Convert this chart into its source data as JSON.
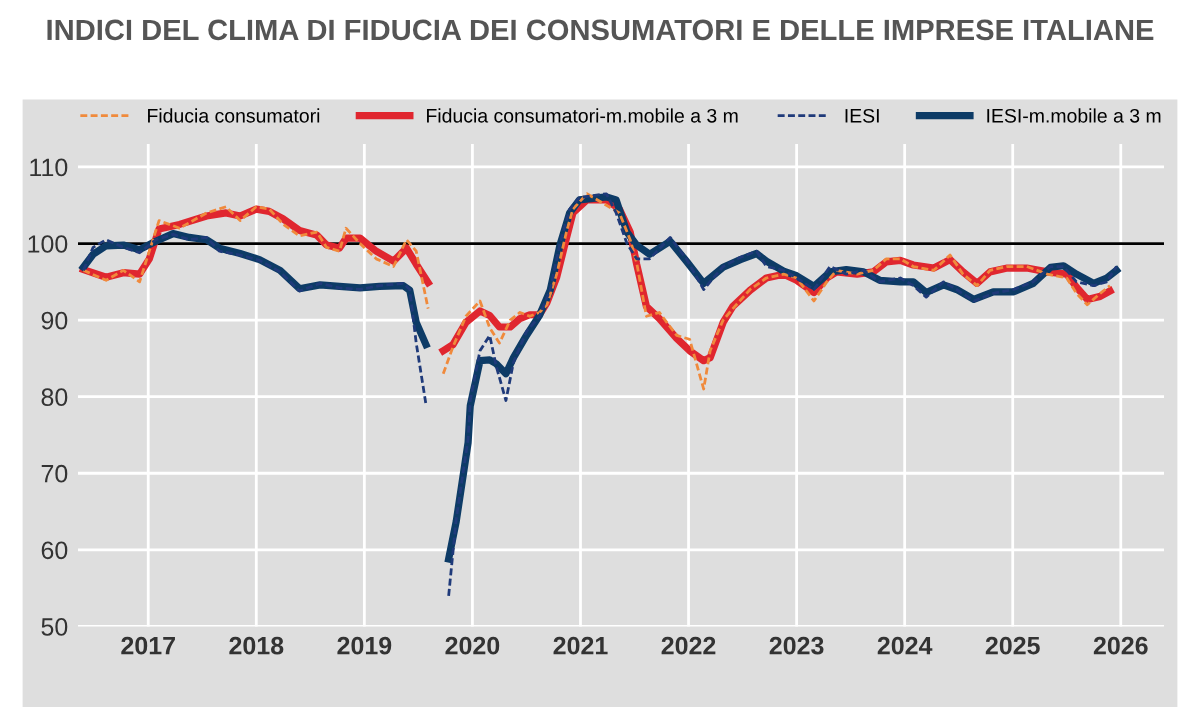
{
  "chart_data": {
    "type": "line",
    "title": "INDICI DEL CLIMA DI FIDUCIA DEI CONSUMATORI E DELLE IMPRESE ITALIANE",
    "xlim": [
      2016.85,
      2026.9
    ],
    "ylim": [
      50,
      113
    ],
    "xticks": [
      {
        "value": 2017.5,
        "label": "2017"
      },
      {
        "value": 2018.5,
        "label": "2018"
      },
      {
        "value": 2019.5,
        "label": "2019"
      },
      {
        "value": 2020.5,
        "label": "2020"
      },
      {
        "value": 2021.5,
        "label": "2021"
      },
      {
        "value": 2022.5,
        "label": "2022"
      },
      {
        "value": 2023.5,
        "label": "2023"
      },
      {
        "value": 2024.5,
        "label": "2024"
      },
      {
        "value": 2025.5,
        "label": "2025"
      },
      {
        "value": 2026.5,
        "label": "2026"
      }
    ],
    "yticks": [
      50,
      60,
      70,
      80,
      90,
      100,
      110
    ],
    "grid": true,
    "legend": "top",
    "ref_lines": [
      {
        "axis": "y",
        "value": 100,
        "color": "#000000"
      }
    ],
    "series": [
      {
        "name": "Fiducia consumatori",
        "color": "#f08a3c",
        "line_style": "dashed",
        "x": [
          2016.9,
          2017.11,
          2017.27,
          2017.42,
          2017.51,
          2017.6,
          2017.79,
          2018.04,
          2018.22,
          2018.35,
          2018.5,
          2018.62,
          2018.75,
          2018.9,
          2019.06,
          2019.15,
          2019.27,
          2019.33,
          2019.46,
          2019.61,
          2019.77,
          2019.89,
          2019.98,
          2020.09,
          2020.15,
          2020.23,
          2020.32,
          2020.44,
          2020.57,
          2020.66,
          2020.75,
          2020.85,
          2020.94,
          2021.03,
          2021.12,
          2021.19,
          2021.28,
          2021.37,
          2021.43,
          2021.56,
          2021.74,
          2021.86,
          2021.96,
          2022.02,
          2022.11,
          2022.23,
          2022.39,
          2022.51,
          2022.64,
          2022.7,
          2022.82,
          2022.91,
          2023.07,
          2023.22,
          2023.38,
          2023.5,
          2023.66,
          2023.78,
          2023.87,
          2024.06,
          2024.21,
          2024.33,
          2024.46,
          2024.58,
          2024.77,
          2024.92,
          2025.04,
          2025.17,
          2025.29,
          2025.45,
          2025.63,
          2025.82,
          2026.0,
          2026.09,
          2026.19,
          2026.31,
          2026.4
        ],
        "values": [
          96.5,
          95.2,
          96.5,
          95.0,
          99.0,
          103.0,
          102.0,
          104.0,
          104.8,
          103.0,
          104.8,
          104.5,
          102.5,
          101.0,
          101.5,
          99.5,
          99.0,
          102.0,
          100.0,
          98.0,
          97.0,
          100.5,
          99.0,
          91.5,
          null,
          83.0,
          86.5,
          90.5,
          92.5,
          89.0,
          87.0,
          90.0,
          91.0,
          90.5,
          91.0,
          92.0,
          96.0,
          101.5,
          104.5,
          106.5,
          105.0,
          104.0,
          100.5,
          97.5,
          90.5,
          91.0,
          88.0,
          87.5,
          81.0,
          86.0,
          90.0,
          91.5,
          94.0,
          95.5,
          96.0,
          95.5,
          92.5,
          95.0,
          96.5,
          96.0,
          96.5,
          98.0,
          98.0,
          97.0,
          96.5,
          98.5,
          96.0,
          94.5,
          96.5,
          97.0,
          97.0,
          96.0,
          95.5,
          93.5,
          92.0,
          93.5,
          94.5
        ]
      },
      {
        "name": "Fiducia consumatori-m.mobile a 3 m",
        "color": "#e0262f",
        "line_style": "solid",
        "x": [
          2016.9,
          2017.11,
          2017.27,
          2017.42,
          2017.51,
          2017.6,
          2017.79,
          2018.04,
          2018.22,
          2018.35,
          2018.5,
          2018.62,
          2018.75,
          2018.9,
          2019.06,
          2019.15,
          2019.27,
          2019.33,
          2019.46,
          2019.61,
          2019.77,
          2019.89,
          2019.98,
          2020.09,
          2020.15,
          2020.23,
          2020.32,
          2020.44,
          2020.57,
          2020.66,
          2020.75,
          2020.85,
          2020.94,
          2021.03,
          2021.12,
          2021.19,
          2021.28,
          2021.37,
          2021.43,
          2021.56,
          2021.74,
          2021.86,
          2021.96,
          2022.02,
          2022.11,
          2022.23,
          2022.39,
          2022.51,
          2022.64,
          2022.7,
          2022.82,
          2022.91,
          2023.07,
          2023.22,
          2023.38,
          2023.5,
          2023.66,
          2023.78,
          2023.87,
          2024.06,
          2024.21,
          2024.33,
          2024.46,
          2024.58,
          2024.77,
          2024.92,
          2025.04,
          2025.17,
          2025.29,
          2025.45,
          2025.63,
          2025.82,
          2026.0,
          2026.09,
          2026.19,
          2026.31,
          2026.4
        ],
        "values": [
          96.6,
          95.6,
          96.2,
          96.0,
          98.0,
          101.9,
          102.5,
          103.6,
          104.0,
          103.6,
          104.5,
          104.2,
          103.2,
          101.7,
          101.1,
          99.8,
          99.4,
          100.7,
          100.7,
          99.0,
          97.7,
          99.4,
          97.3,
          94.9,
          null,
          86.0,
          86.8,
          89.7,
          91.2,
          90.6,
          89.1,
          89.1,
          90.2,
          90.7,
          90.7,
          92.3,
          95.6,
          100.7,
          104.0,
          105.7,
          105.7,
          104.5,
          101.5,
          97.3,
          91.8,
          90.2,
          87.6,
          86.0,
          84.7,
          85.1,
          89.7,
          91.8,
          93.9,
          95.5,
          96.0,
          95.2,
          93.6,
          95.5,
          96.3,
          96.0,
          96.3,
          97.6,
          97.8,
          97.2,
          96.8,
          97.9,
          96.3,
          94.8,
          96.3,
          96.8,
          96.8,
          96.3,
          96.0,
          94.3,
          92.7,
          93.1,
          93.8
        ]
      },
      {
        "name": "IESI",
        "color": "#1f3a7a",
        "line_style": "dashed",
        "x": [
          2016.9,
          2016.99,
          2017.11,
          2017.27,
          2017.42,
          2017.57,
          2017.73,
          2017.88,
          2018.04,
          2018.16,
          2018.35,
          2018.53,
          2018.72,
          2018.9,
          2019.09,
          2019.27,
          2019.46,
          2019.64,
          2019.86,
          2019.92,
          2019.98,
          2020.07,
          2020.17,
          2020.28,
          2020.35,
          2020.46,
          2020.48,
          2020.57,
          2020.66,
          2020.72,
          2020.81,
          2020.88,
          2021.0,
          2021.12,
          2021.22,
          2021.31,
          2021.4,
          2021.49,
          2021.74,
          2021.83,
          2021.93,
          2022.02,
          2022.14,
          2022.33,
          2022.48,
          2022.64,
          2022.82,
          2022.98,
          2023.13,
          2023.22,
          2023.38,
          2023.5,
          2023.66,
          2023.81,
          2023.96,
          2024.12,
          2024.27,
          2024.46,
          2024.58,
          2024.7,
          2024.86,
          2024.98,
          2025.14,
          2025.32,
          2025.51,
          2025.69,
          2025.85,
          2025.97,
          2026.09,
          2026.25,
          2026.37,
          2026.46
        ],
        "values": [
          96.5,
          99.5,
          100.5,
          99.5,
          98.8,
          100.5,
          101.2,
          100.5,
          100.8,
          99.0,
          98.5,
          97.8,
          96.3,
          93.8,
          94.8,
          94.2,
          94.0,
          94.5,
          94.8,
          94.0,
          87.0,
          79.0,
          null,
          54.0,
          64.0,
          74.5,
          79.5,
          86.0,
          88.0,
          84.0,
          79.5,
          84.5,
          88.5,
          90.5,
          94.0,
          100.0,
          104.5,
          106.0,
          106.5,
          104.0,
          100.0,
          98.0,
          98.0,
          100.8,
          98.0,
          94.0,
          97.0,
          98.2,
          99.0,
          97.0,
          96.5,
          95.5,
          94.0,
          97.0,
          96.0,
          96.5,
          95.0,
          95.5,
          94.5,
          93.0,
          95.0,
          94.0,
          92.5,
          93.5,
          94.0,
          95.0,
          97.0,
          97.0,
          95.0,
          94.5,
          95.0,
          97.0
        ]
      },
      {
        "name": "IESI-m.mobile a 3 m",
        "color": "#0d3b66",
        "line_style": "solid",
        "x": [
          2016.9,
          2016.99,
          2017.11,
          2017.27,
          2017.42,
          2017.57,
          2017.73,
          2017.88,
          2018.04,
          2018.16,
          2018.35,
          2018.53,
          2018.72,
          2018.9,
          2019.09,
          2019.27,
          2019.46,
          2019.64,
          2019.86,
          2019.92,
          2019.98,
          2020.07,
          2020.17,
          2020.28,
          2020.35,
          2020.46,
          2020.48,
          2020.57,
          2020.66,
          2020.72,
          2020.81,
          2020.88,
          2021.0,
          2021.12,
          2021.22,
          2021.31,
          2021.4,
          2021.49,
          2021.74,
          2021.83,
          2021.93,
          2022.02,
          2022.14,
          2022.33,
          2022.48,
          2022.64,
          2022.82,
          2022.98,
          2023.13,
          2023.22,
          2023.38,
          2023.5,
          2023.66,
          2023.81,
          2023.96,
          2024.12,
          2024.27,
          2024.46,
          2024.58,
          2024.7,
          2024.86,
          2024.98,
          2025.14,
          2025.32,
          2025.51,
          2025.69,
          2025.85,
          2025.97,
          2026.09,
          2026.25,
          2026.37,
          2026.46
        ],
        "values": [
          96.9,
          98.6,
          99.7,
          99.8,
          99.2,
          100.3,
          101.3,
          100.8,
          100.5,
          99.4,
          98.7,
          97.9,
          96.5,
          94.1,
          94.6,
          94.4,
          94.2,
          94.4,
          94.5,
          93.9,
          89.7,
          86.8,
          null,
          58.8,
          63.7,
          74.0,
          78.8,
          84.7,
          84.8,
          84.3,
          83.0,
          85.1,
          88.0,
          90.6,
          93.9,
          99.8,
          104.0,
          105.7,
          106.1,
          105.7,
          101.5,
          99.8,
          98.6,
          100.3,
          97.7,
          94.8,
          96.9,
          97.9,
          98.7,
          97.7,
          96.4,
          95.8,
          94.4,
          96.3,
          96.6,
          96.3,
          95.2,
          95.0,
          95.0,
          93.6,
          94.6,
          94.0,
          92.7,
          93.7,
          93.7,
          94.8,
          96.9,
          97.1,
          96.0,
          94.8,
          95.5,
          96.5
        ]
      }
    ]
  }
}
